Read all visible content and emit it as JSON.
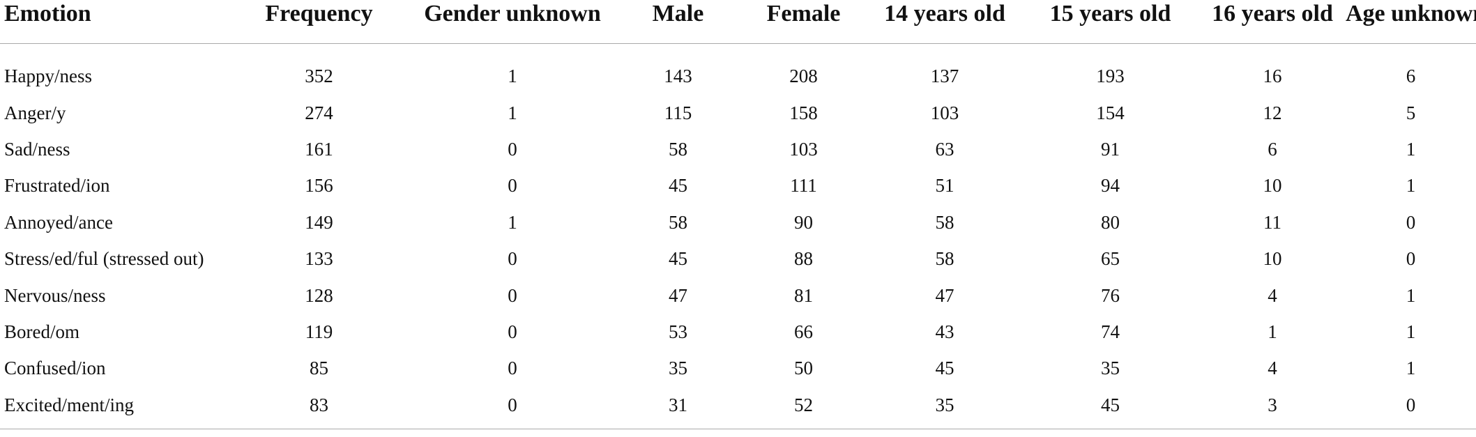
{
  "table": {
    "headers": [
      "Emotion",
      "Frequency",
      "Gender unknown",
      "Male",
      "Female",
      "14 years old",
      "15 years old",
      "16 years old",
      "Age unknown"
    ],
    "rows": [
      [
        "Happy/ness",
        "352",
        "1",
        "143",
        "208",
        "137",
        "193",
        "16",
        "6"
      ],
      [
        "Anger/y",
        "274",
        "1",
        "115",
        "158",
        "103",
        "154",
        "12",
        "5"
      ],
      [
        "Sad/ness",
        "161",
        "0",
        "58",
        "103",
        "63",
        "91",
        "6",
        "1"
      ],
      [
        "Frustrated/ion",
        "156",
        "0",
        "45",
        "111",
        "51",
        "94",
        "10",
        "1"
      ],
      [
        "Annoyed/ance",
        "149",
        "1",
        "58",
        "90",
        "58",
        "80",
        "11",
        "0"
      ],
      [
        "Stress/ed/ful (stressed out)",
        "133",
        "0",
        "45",
        "88",
        "58",
        "65",
        "10",
        "0"
      ],
      [
        "Nervous/ness",
        "128",
        "0",
        "47",
        "81",
        "47",
        "76",
        "4",
        "1"
      ],
      [
        "Bored/om",
        "119",
        "0",
        "53",
        "66",
        "43",
        "74",
        "1",
        "1"
      ],
      [
        "Confused/ion",
        "85",
        "0",
        "35",
        "50",
        "45",
        "35",
        "4",
        "1"
      ],
      [
        "Excited/ment/ing",
        "83",
        "0",
        "31",
        "52",
        "35",
        "45",
        "3",
        "0"
      ]
    ]
  }
}
